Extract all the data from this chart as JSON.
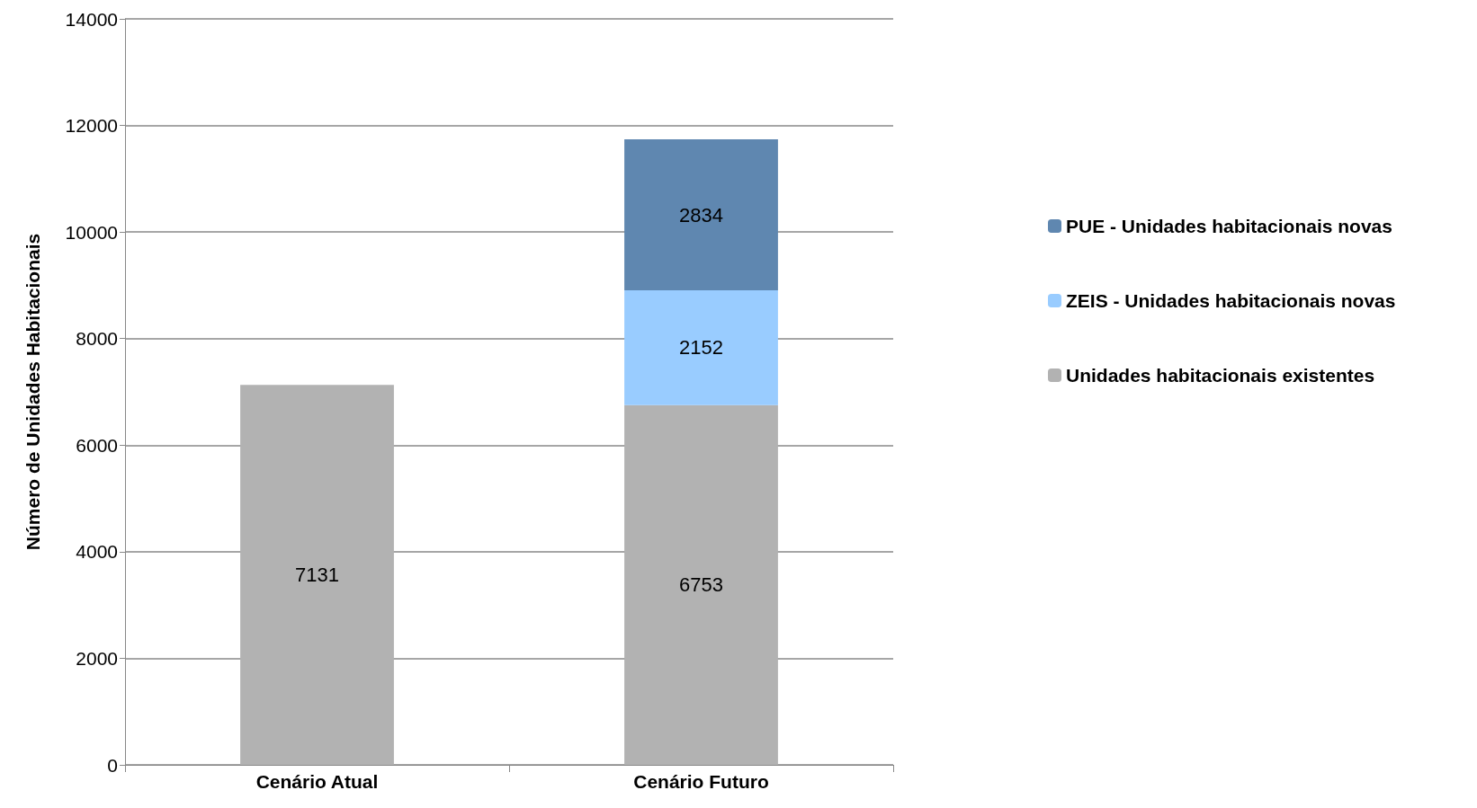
{
  "chart_data": {
    "type": "bar",
    "stacked": true,
    "ylabel": "Número de Unidades Habitacionais",
    "categories": [
      "Cenário Atual",
      "Cenário Futuro"
    ],
    "series": [
      {
        "name": "Unidades habitacionais existentes",
        "color": "#b2b2b2",
        "values": [
          7131,
          6753
        ]
      },
      {
        "name": "ZEIS - Unidades habitacionais novas",
        "color": "#99ccff",
        "values": [
          null,
          2152
        ]
      },
      {
        "name": "PUE - Unidades habitacionais novas",
        "color": "#5f87b0",
        "values": [
          null,
          2834
        ]
      }
    ],
    "ylim": [
      0,
      14000
    ],
    "yticks": [
      0,
      2000,
      4000,
      6000,
      8000,
      10000,
      12000,
      14000
    ],
    "grid": "y",
    "legend": "right",
    "data_labels": true
  }
}
